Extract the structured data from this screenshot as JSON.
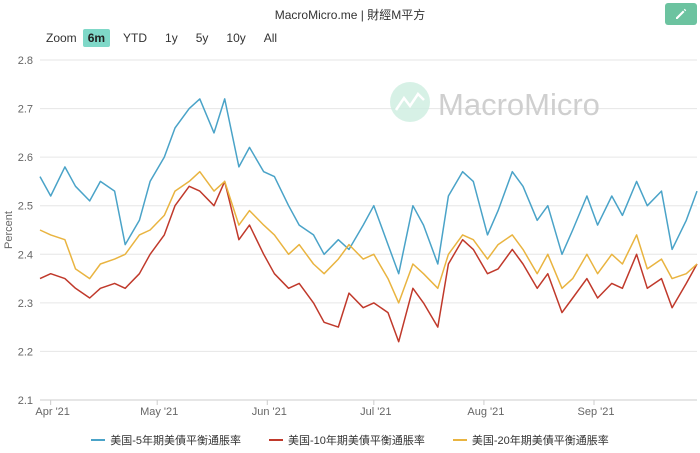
{
  "header": {
    "title": "MacroMicro.me | 財經M平方"
  },
  "zoom": {
    "label": "Zoom",
    "buttons": [
      "6m",
      "YTD",
      "1y",
      "5y",
      "10y",
      "All"
    ],
    "active_index": 0
  },
  "watermark": "MacroMicro",
  "colors": {
    "series_5y": "#4aa3c8",
    "series_10y": "#c0392b",
    "series_20y": "#e9b440",
    "grid": "#e6e6e6",
    "accent": "#6cc3a0"
  },
  "chart_data": {
    "type": "line",
    "ylabel": "Percent",
    "ylim": [
      2.1,
      2.8
    ],
    "yticks": [
      "2.8",
      "2.7",
      "2.6",
      "2.5",
      "2.4",
      "2.3",
      "2.2",
      "2.1"
    ],
    "xlim": [
      "2021-03-29",
      "2021-09-30"
    ],
    "xticks": [
      {
        "date": "2021-04-01",
        "label": "Apr '21"
      },
      {
        "date": "2021-05-01",
        "label": "May '21"
      },
      {
        "date": "2021-06-01",
        "label": "Jun '21"
      },
      {
        "date": "2021-07-01",
        "label": "Jul '21"
      },
      {
        "date": "2021-08-01",
        "label": "Aug '21"
      },
      {
        "date": "2021-09-01",
        "label": "Sep '21"
      }
    ],
    "grid": true,
    "legend_position": "bottom",
    "series": [
      {
        "name": "美国-5年期美債平衡通脹率",
        "x": [
          "2021-03-29",
          "2021-04-01",
          "2021-04-05",
          "2021-04-08",
          "2021-04-12",
          "2021-04-15",
          "2021-04-19",
          "2021-04-22",
          "2021-04-26",
          "2021-04-29",
          "2021-05-03",
          "2021-05-06",
          "2021-05-10",
          "2021-05-13",
          "2021-05-17",
          "2021-05-20",
          "2021-05-24",
          "2021-05-27",
          "2021-05-31",
          "2021-06-03",
          "2021-06-07",
          "2021-06-10",
          "2021-06-14",
          "2021-06-17",
          "2021-06-21",
          "2021-06-24",
          "2021-06-28",
          "2021-07-01",
          "2021-07-05",
          "2021-07-08",
          "2021-07-12",
          "2021-07-15",
          "2021-07-19",
          "2021-07-22",
          "2021-07-26",
          "2021-07-29",
          "2021-08-02",
          "2021-08-05",
          "2021-08-09",
          "2021-08-12",
          "2021-08-16",
          "2021-08-19",
          "2021-08-23",
          "2021-08-26",
          "2021-08-30",
          "2021-09-02",
          "2021-09-06",
          "2021-09-09",
          "2021-09-13",
          "2021-09-16",
          "2021-09-20",
          "2021-09-23",
          "2021-09-27",
          "2021-09-30"
        ],
        "values": [
          2.56,
          2.52,
          2.58,
          2.54,
          2.51,
          2.55,
          2.53,
          2.42,
          2.47,
          2.55,
          2.6,
          2.66,
          2.7,
          2.72,
          2.65,
          2.72,
          2.58,
          2.62,
          2.57,
          2.56,
          2.5,
          2.46,
          2.44,
          2.4,
          2.43,
          2.41,
          2.46,
          2.5,
          2.42,
          2.36,
          2.5,
          2.46,
          2.38,
          2.52,
          2.57,
          2.55,
          2.44,
          2.49,
          2.57,
          2.54,
          2.47,
          2.5,
          2.4,
          2.45,
          2.52,
          2.46,
          2.52,
          2.48,
          2.55,
          2.5,
          2.53,
          2.41,
          2.47,
          2.53
        ]
      },
      {
        "name": "美国-10年期美債平衡通脹率",
        "x": [
          "2021-03-29",
          "2021-04-01",
          "2021-04-05",
          "2021-04-08",
          "2021-04-12",
          "2021-04-15",
          "2021-04-19",
          "2021-04-22",
          "2021-04-26",
          "2021-04-29",
          "2021-05-03",
          "2021-05-06",
          "2021-05-10",
          "2021-05-13",
          "2021-05-17",
          "2021-05-20",
          "2021-05-24",
          "2021-05-27",
          "2021-05-31",
          "2021-06-03",
          "2021-06-07",
          "2021-06-10",
          "2021-06-14",
          "2021-06-17",
          "2021-06-21",
          "2021-06-24",
          "2021-06-28",
          "2021-07-01",
          "2021-07-05",
          "2021-07-08",
          "2021-07-12",
          "2021-07-15",
          "2021-07-19",
          "2021-07-22",
          "2021-07-26",
          "2021-07-29",
          "2021-08-02",
          "2021-08-05",
          "2021-08-09",
          "2021-08-12",
          "2021-08-16",
          "2021-08-19",
          "2021-08-23",
          "2021-08-26",
          "2021-08-30",
          "2021-09-02",
          "2021-09-06",
          "2021-09-09",
          "2021-09-13",
          "2021-09-16",
          "2021-09-20",
          "2021-09-23",
          "2021-09-27",
          "2021-09-30"
        ],
        "values": [
          2.35,
          2.36,
          2.35,
          2.33,
          2.31,
          2.33,
          2.34,
          2.33,
          2.36,
          2.4,
          2.44,
          2.5,
          2.54,
          2.53,
          2.5,
          2.55,
          2.43,
          2.46,
          2.4,
          2.36,
          2.33,
          2.34,
          2.3,
          2.26,
          2.25,
          2.32,
          2.29,
          2.3,
          2.28,
          2.22,
          2.33,
          2.3,
          2.25,
          2.38,
          2.43,
          2.41,
          2.36,
          2.37,
          2.41,
          2.38,
          2.33,
          2.36,
          2.28,
          2.31,
          2.35,
          2.31,
          2.34,
          2.33,
          2.4,
          2.33,
          2.35,
          2.29,
          2.34,
          2.38
        ]
      },
      {
        "name": "美国-20年期美債平衡通脹率",
        "x": [
          "2021-03-29",
          "2021-04-01",
          "2021-04-05",
          "2021-04-08",
          "2021-04-12",
          "2021-04-15",
          "2021-04-19",
          "2021-04-22",
          "2021-04-26",
          "2021-04-29",
          "2021-05-03",
          "2021-05-06",
          "2021-05-10",
          "2021-05-13",
          "2021-05-17",
          "2021-05-20",
          "2021-05-24",
          "2021-05-27",
          "2021-05-31",
          "2021-06-03",
          "2021-06-07",
          "2021-06-10",
          "2021-06-14",
          "2021-06-17",
          "2021-06-21",
          "2021-06-24",
          "2021-06-28",
          "2021-07-01",
          "2021-07-05",
          "2021-07-08",
          "2021-07-12",
          "2021-07-15",
          "2021-07-19",
          "2021-07-22",
          "2021-07-26",
          "2021-07-29",
          "2021-08-02",
          "2021-08-05",
          "2021-08-09",
          "2021-08-12",
          "2021-08-16",
          "2021-08-19",
          "2021-08-23",
          "2021-08-26",
          "2021-08-30",
          "2021-09-02",
          "2021-09-06",
          "2021-09-09",
          "2021-09-13",
          "2021-09-16",
          "2021-09-20",
          "2021-09-23",
          "2021-09-27",
          "2021-09-30"
        ],
        "values": [
          2.45,
          2.44,
          2.43,
          2.37,
          2.35,
          2.38,
          2.39,
          2.4,
          2.44,
          2.45,
          2.48,
          2.53,
          2.55,
          2.57,
          2.53,
          2.55,
          2.46,
          2.49,
          2.46,
          2.44,
          2.4,
          2.42,
          2.38,
          2.36,
          2.39,
          2.42,
          2.39,
          2.4,
          2.35,
          2.3,
          2.38,
          2.36,
          2.33,
          2.4,
          2.44,
          2.43,
          2.39,
          2.42,
          2.44,
          2.41,
          2.36,
          2.4,
          2.33,
          2.35,
          2.4,
          2.36,
          2.4,
          2.38,
          2.44,
          2.37,
          2.39,
          2.35,
          2.36,
          2.38
        ]
      }
    ]
  }
}
